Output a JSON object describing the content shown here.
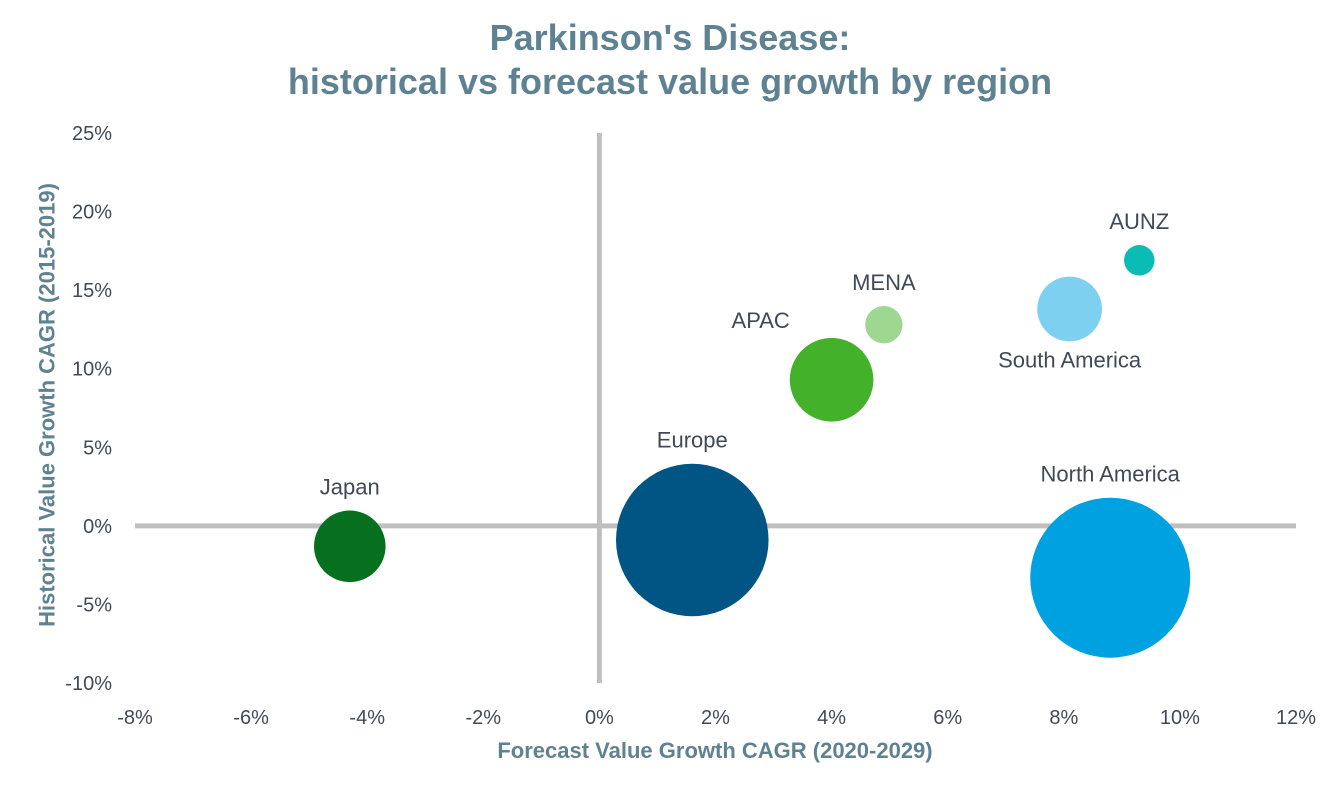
{
  "chart_data": {
    "type": "bubble",
    "title_lines": [
      "Parkinson's Disease:",
      "historical vs forecast value growth by region"
    ],
    "xlabel": "Forecast Value Growth CAGR (2020-2029)",
    "ylabel": "Historical Value Growth CAGR (2015-2019)",
    "xlim": [
      -8,
      12
    ],
    "ylim": [
      -10,
      25
    ],
    "x_ticks": [
      -8,
      -6,
      -4,
      -2,
      0,
      2,
      4,
      6,
      8,
      10,
      12
    ],
    "x_tick_labels": [
      "-8%",
      "-6%",
      "-4%",
      "-2%",
      "0%",
      "2%",
      "4%",
      "6%",
      "8%",
      "10%",
      "12%"
    ],
    "y_ticks": [
      25,
      20,
      15,
      10,
      5,
      0,
      -5,
      -10
    ],
    "y_tick_labels": [
      "25%",
      "20%",
      "15%",
      "10%",
      "5%",
      "0%",
      "-5%",
      "-10%"
    ],
    "grid": false,
    "legend": "none",
    "axis_color": "#bfbfbf",
    "title_color": "#5f8292",
    "tick_label_color": "#404a57",
    "series": [
      {
        "name": "Japan",
        "x": -4.3,
        "y": -1.3,
        "size": 0.22,
        "color": "#07701f",
        "label_position": "above"
      },
      {
        "name": "Europe",
        "x": 1.6,
        "y": -0.9,
        "size": 1.0,
        "color": "#005585",
        "label_position": "above"
      },
      {
        "name": "APAC",
        "x": 4.0,
        "y": 9.3,
        "size": 0.3,
        "color": "#44b12a",
        "label_position": "upper-left"
      },
      {
        "name": "MENA",
        "x": 4.9,
        "y": 12.8,
        "size": 0.06,
        "color": "#9dd790",
        "label_position": "above"
      },
      {
        "name": "South America",
        "x": 8.1,
        "y": 13.8,
        "size": 0.18,
        "color": "#7ed0f0",
        "label_position": "below"
      },
      {
        "name": "AUNZ",
        "x": 9.3,
        "y": 16.9,
        "size": 0.04,
        "color": "#0abcb4",
        "label_position": "above"
      },
      {
        "name": "North America",
        "x": 8.8,
        "y": -3.3,
        "size": 1.1,
        "color": "#00a1e0",
        "label_position": "above"
      }
    ]
  }
}
